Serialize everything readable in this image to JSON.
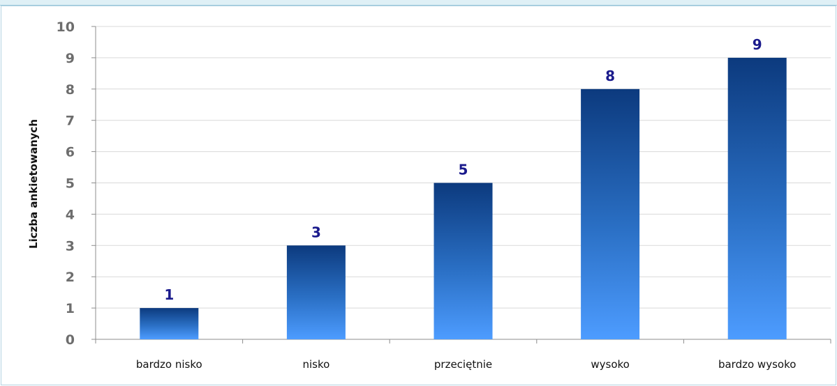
{
  "chart_data": {
    "type": "bar",
    "title": "",
    "xlabel": "",
    "ylabel": "Liczba ankietowanych",
    "categories": [
      "bardzo nisko",
      "nisko",
      "przeciętnie",
      "wysoko",
      "bardzo wysoko"
    ],
    "values": [
      1,
      3,
      5,
      8,
      9
    ],
    "data_labels": [
      "1",
      "3",
      "5",
      "8",
      "9"
    ],
    "ylim": [
      0,
      10
    ],
    "yticks": [
      0,
      1,
      2,
      3,
      4,
      5,
      6,
      7,
      8,
      9,
      10
    ],
    "grid": true,
    "legend": "none",
    "colors": {
      "bar_top": "#0c3a7e",
      "bar_mid": "#2a6fc4",
      "bar_bottom": "#4d9cff",
      "data_label": "#1a1a8c",
      "tick_label": "#6d6d6d",
      "category_label": "#111111",
      "gridline": "#d9d9d9",
      "axis": "#8c8c8c",
      "frame_border": "#b4d3e2",
      "top_strip": "#dff0f6"
    }
  }
}
